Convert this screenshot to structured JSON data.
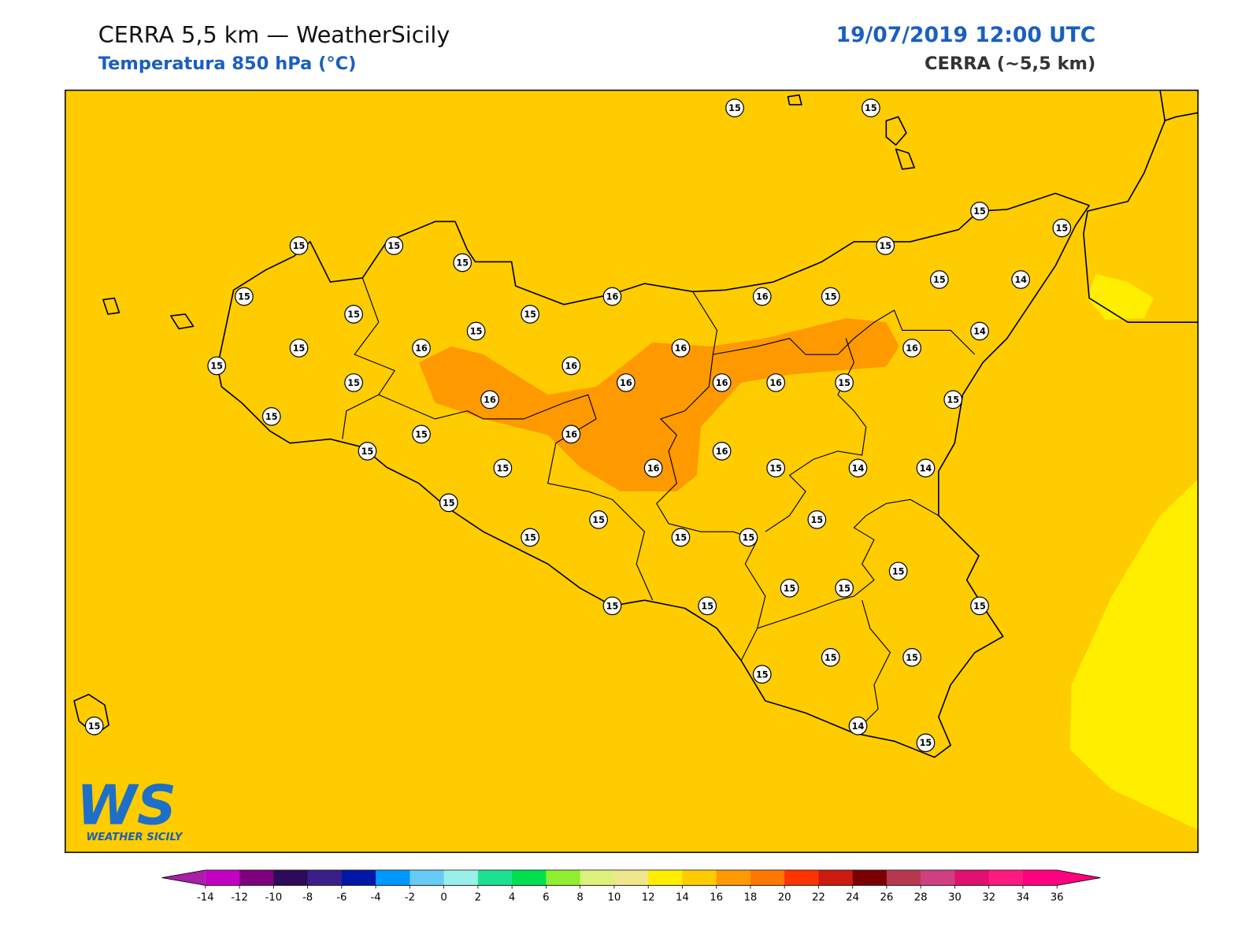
{
  "header": {
    "title": "CERRA 5,5 km — WeatherSicily",
    "subtitle": "Temperatura 850 hPa (°C)",
    "datetime": "19/07/2019 12:00 UTC",
    "model": "CERRA (~5,5 km)"
  },
  "map": {
    "background": "#ffcc00",
    "warm_color": "#ff9900",
    "cool_color": "#ffee00"
  },
  "stations": [
    15,
    15,
    15,
    15,
    15,
    15,
    15,
    15,
    15,
    16,
    16,
    15,
    15,
    14,
    15,
    15,
    15,
    14,
    15,
    16,
    16,
    16,
    15,
    16,
    15,
    16,
    16,
    16,
    15,
    16,
    15,
    15,
    15,
    16,
    15,
    16,
    15,
    16,
    15,
    14,
    14,
    15,
    15,
    15,
    15,
    15,
    15,
    15,
    15,
    15,
    15,
    15,
    15,
    15,
    15,
    15,
    15,
    14,
    15
  ],
  "colorbar": {
    "ticks": [
      -14,
      -12,
      -10,
      -8,
      -6,
      -4,
      -2,
      0,
      2,
      4,
      6,
      8,
      10,
      12,
      14,
      16,
      18,
      20,
      22,
      24,
      26,
      28,
      30,
      32,
      34,
      36
    ],
    "colors": [
      "#c400c4",
      "#800080",
      "#2d0a5a",
      "#3a1f8a",
      "#0018a8",
      "#0096ff",
      "#66ccf5",
      "#99f0e8",
      "#1ee092",
      "#00e050",
      "#90ee30",
      "#dcf07c",
      "#f0e68c",
      "#ffee00",
      "#ffcc00",
      "#ff9900",
      "#ff7700",
      "#ff3300",
      "#cc1a10",
      "#7a0000",
      "#b83850",
      "#d04080",
      "#e01070",
      "#ff1a80",
      "#ff0080"
    ],
    "under": "#a81fa8",
    "over": "#ff0080"
  },
  "logo": {
    "mark": "WS",
    "text": "WEATHER SICILY"
  }
}
